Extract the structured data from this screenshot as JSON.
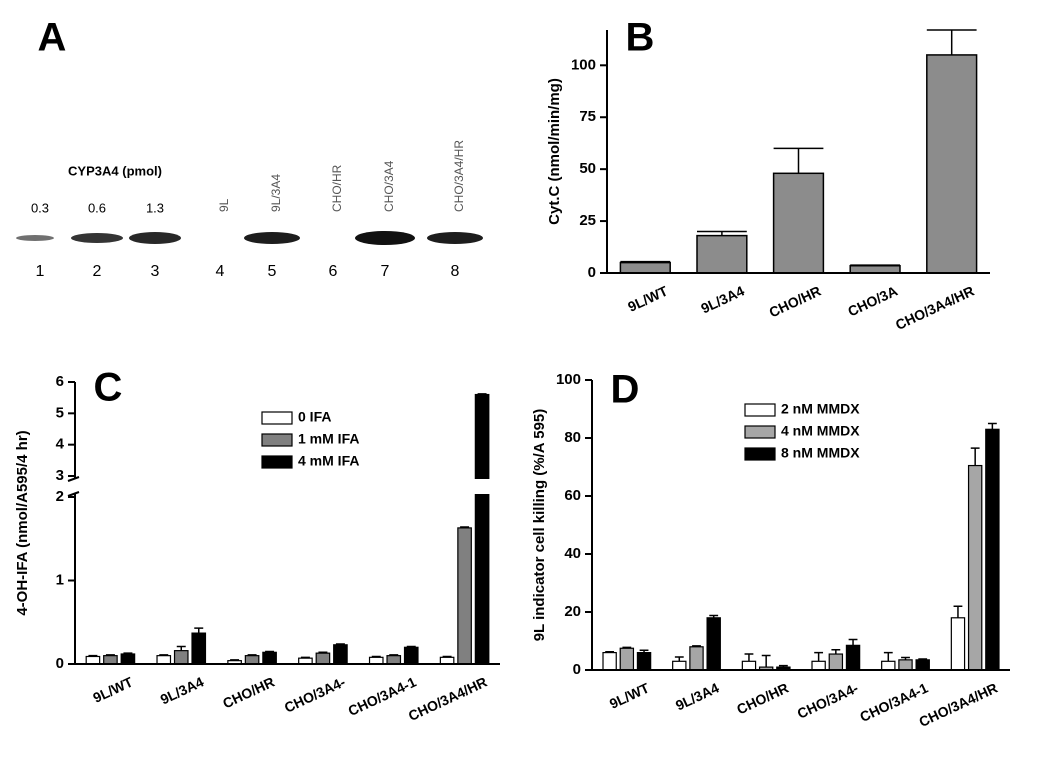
{
  "blot": {
    "label": "A",
    "title": "CYP3A4 (pmol)",
    "amounts": [
      0.3,
      0.6,
      1.3
    ],
    "lanes": [
      "9L",
      "9L/3A4",
      "CHO/HR",
      "CHO/3A4",
      "CHO/3A4/HR"
    ],
    "lane_numbers": [
      1,
      2,
      3,
      4,
      5,
      6,
      7,
      8
    ]
  },
  "chart_data": [
    {
      "type": "bar",
      "label": "B",
      "y_label": "Cyt.C (nmol/min/mg)",
      "categories": [
        "9L/WT",
        "9L/3A4",
        "CHO/HR",
        "CHO/3A",
        "CHO/3A4/HR"
      ],
      "values": [
        5,
        18,
        48,
        3.5,
        105
      ],
      "errors": [
        0.5,
        2,
        12,
        0.3,
        12
      ],
      "color": "#8c8c8c",
      "ylim": [
        0,
        117
      ],
      "yticks": [
        0,
        25,
        50,
        75,
        100
      ]
    },
    {
      "type": "grouped-bar",
      "label": "C",
      "y_label": "4-OH-IFA (nmol/A595/4 hr)",
      "categories": [
        "9L/WT",
        "9L/3A4",
        "CHO/HR",
        "CHO/3A4-",
        "CHO/3A4-1",
        "CHO/3A4/HR"
      ],
      "series": [
        {
          "name": "0 IFA",
          "color": "#ffffff",
          "values": [
            0.09,
            0.1,
            0.04,
            0.07,
            0.08,
            0.08
          ],
          "errors": [
            0.01,
            0.01,
            0.01,
            0.01,
            0.01,
            0.01
          ]
        },
        {
          "name": "1 mM IFA",
          "color": "#808080",
          "values": [
            0.1,
            0.16,
            0.1,
            0.13,
            0.1,
            1.63
          ],
          "errors": [
            0.01,
            0.05,
            0.01,
            0.01,
            0.01,
            0.01
          ]
        },
        {
          "name": "4 mM IFA",
          "color": "#000000",
          "values": [
            0.12,
            0.37,
            0.14,
            0.23,
            0.2,
            5.6
          ],
          "errors": [
            0.01,
            0.06,
            0.01,
            0.01,
            0.01,
            0.02
          ]
        }
      ],
      "ylim": [
        0,
        6
      ],
      "ybreak": [
        2,
        3
      ],
      "yticks": [
        0,
        1,
        2,
        3,
        4,
        5,
        6
      ],
      "legend": "upper center"
    },
    {
      "type": "grouped-bar",
      "label": "D",
      "y_label": "9L indicator cell killing (%/A 595)",
      "categories": [
        "9L/WT",
        "9L/3A4",
        "CHO/HR",
        "CHO/3A4-",
        "CHO/3A4-1",
        "CHO/3A4/HR"
      ],
      "series": [
        {
          "name": "2 nM MMDX",
          "color": "#ffffff",
          "values": [
            6,
            3,
            3,
            3,
            3,
            18
          ],
          "errors": [
            0.3,
            1.5,
            2.5,
            3,
            3,
            4
          ]
        },
        {
          "name": "4 nM MMDX",
          "color": "#a6a6a6",
          "values": [
            7.5,
            8,
            1,
            5.5,
            3.5,
            70.5
          ],
          "errors": [
            0.3,
            0.3,
            4,
            1.5,
            0.8,
            6
          ]
        },
        {
          "name": "8 nM MMDX",
          "color": "#000000",
          "values": [
            6,
            18,
            1,
            8.5,
            3.5,
            83
          ],
          "errors": [
            0.8,
            0.8,
            0.5,
            2,
            0.3,
            2
          ]
        }
      ],
      "ylim": [
        0,
        100
      ],
      "yticks": [
        0,
        20,
        40,
        60,
        80,
        100
      ],
      "legend": "upper center"
    }
  ]
}
